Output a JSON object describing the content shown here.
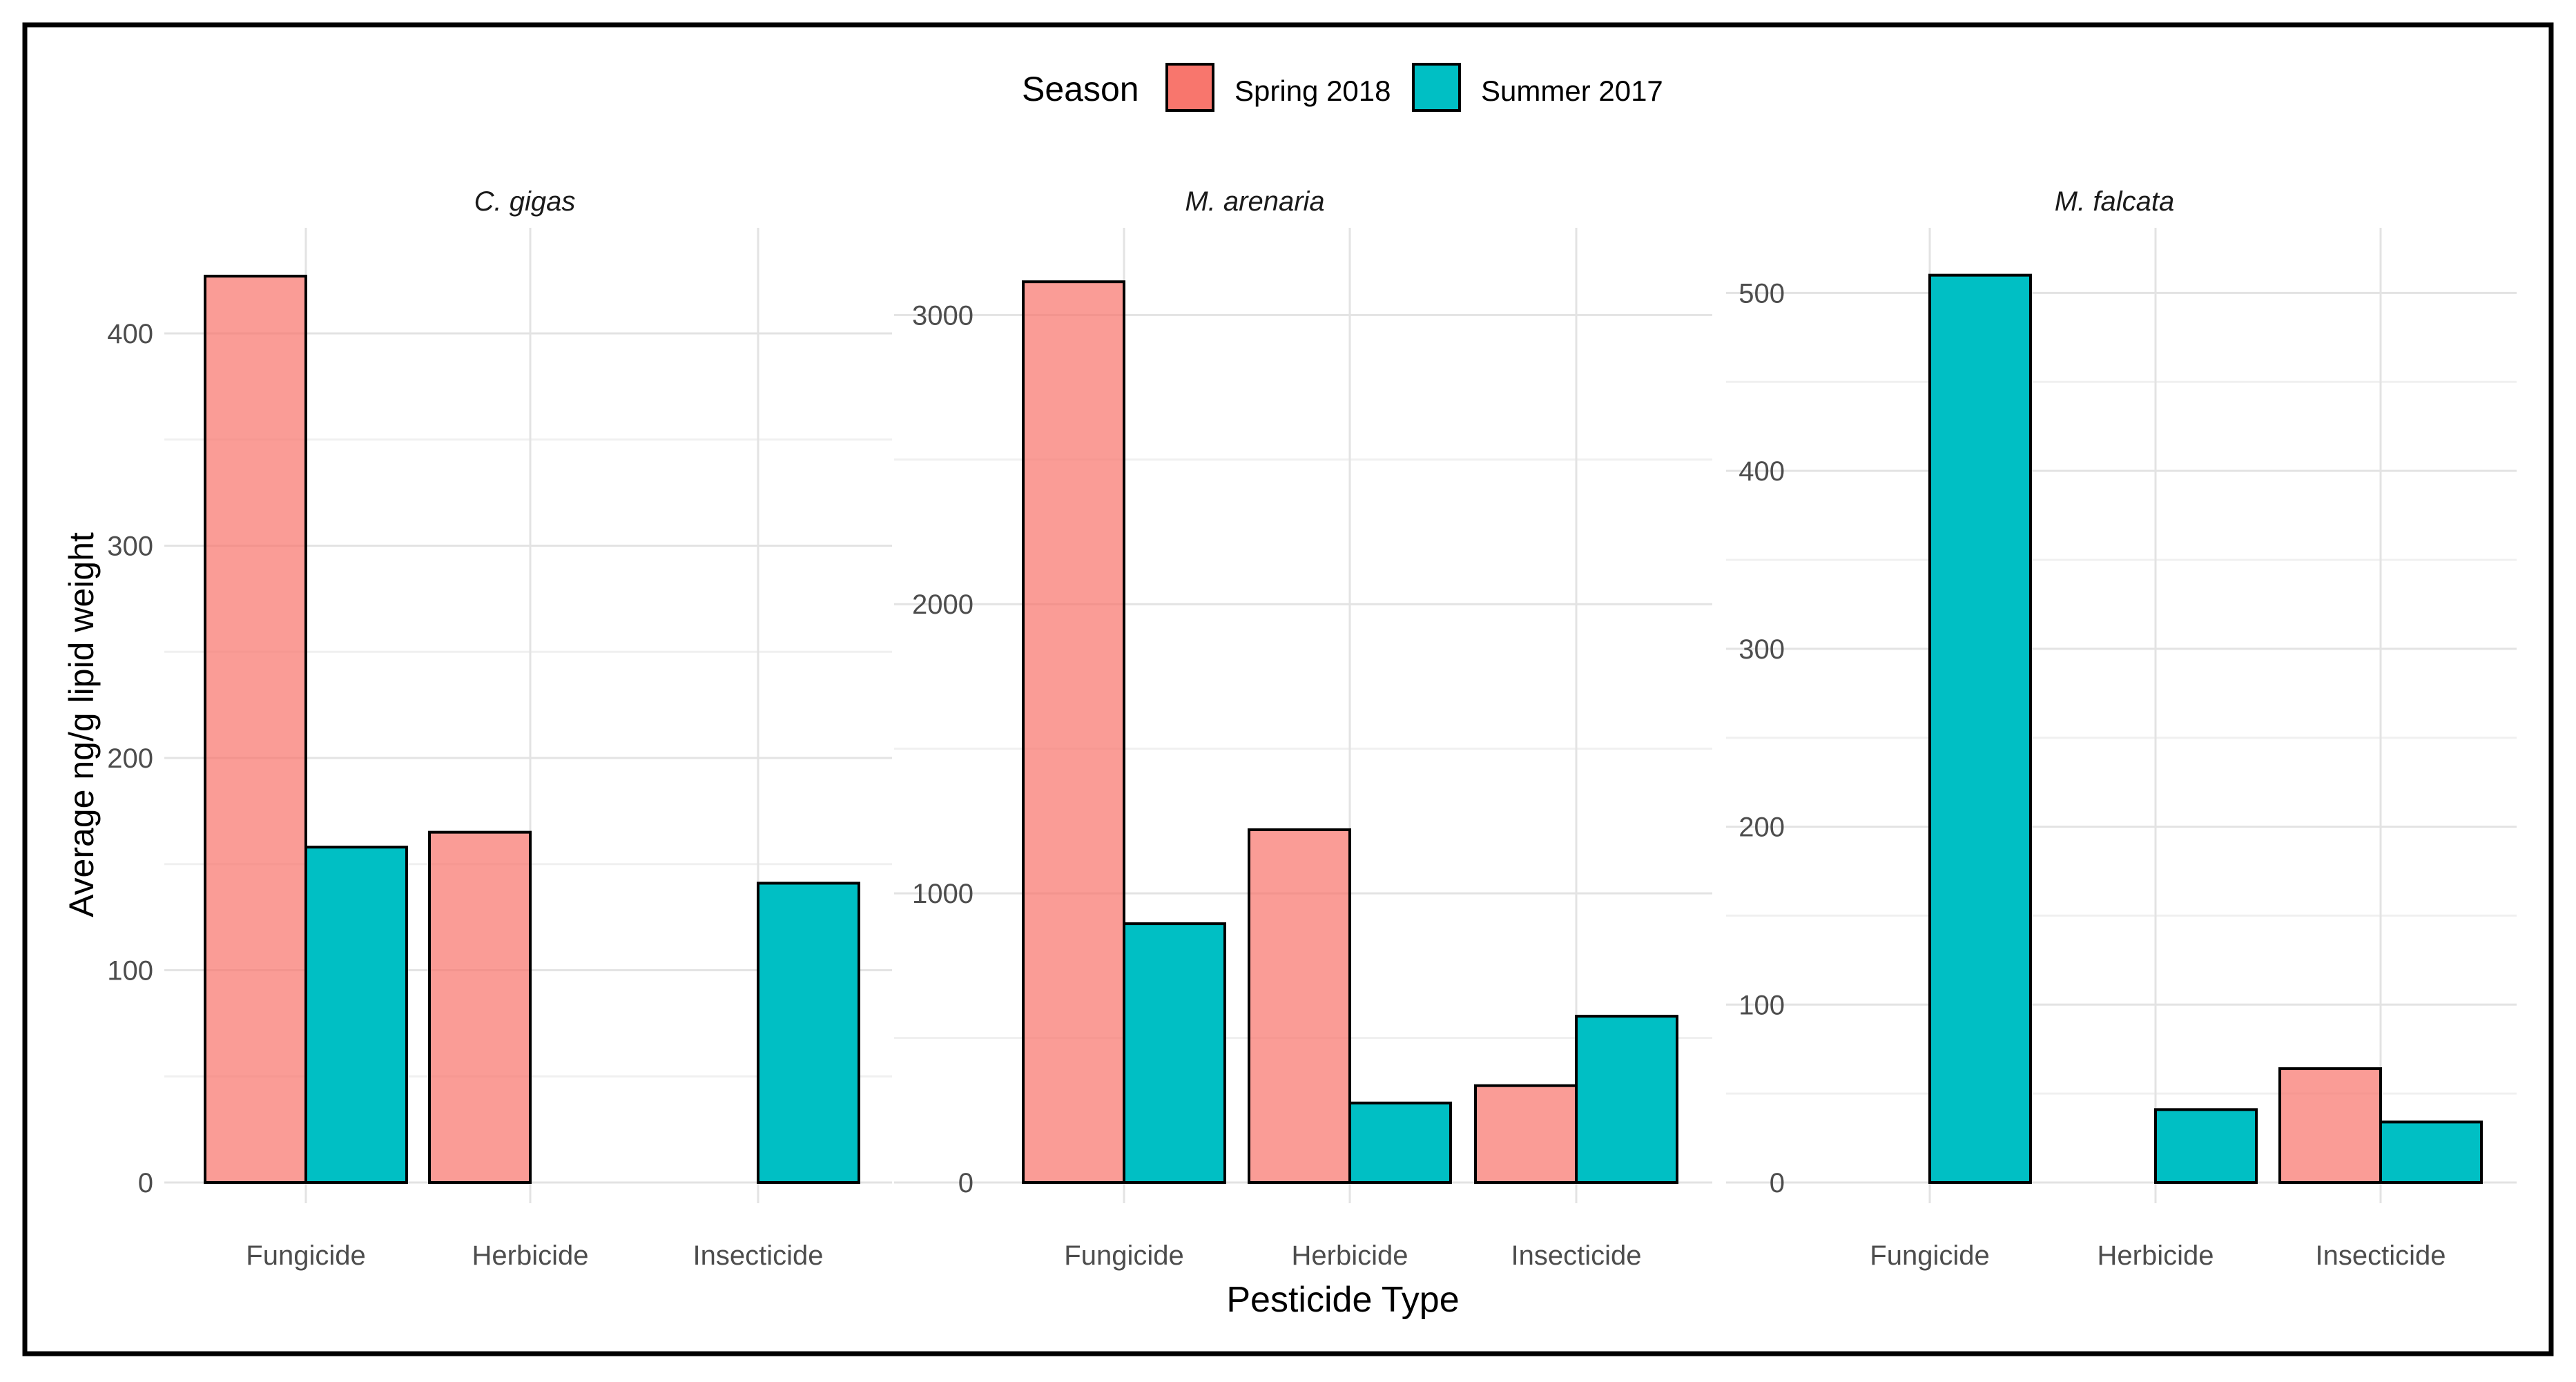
{
  "chart_data": {
    "type": "bar",
    "legend": {
      "title": "Season",
      "position": "top",
      "entries": [
        {
          "name": "Spring 2018",
          "color": "#F8766D"
        },
        {
          "name": "Summer 2017",
          "color": "#00BFC4"
        }
      ]
    },
    "xlabel": "Pesticide Type",
    "ylabel": "Average ng/g lipid weight",
    "categories": [
      "Fungicide",
      "Herbicide",
      "Insecticide"
    ],
    "panels": [
      {
        "title": "C. gigas",
        "ylim": [
          0,
          440
        ],
        "yticks": [
          0,
          100,
          200,
          300,
          400
        ],
        "series": [
          {
            "name": "Spring 2018",
            "values": [
              427,
              165,
              0
            ]
          },
          {
            "name": "Summer 2017",
            "values": [
              158,
              0,
              141
            ]
          }
        ]
      },
      {
        "title": "M. arenaria",
        "ylim": [
          0,
          3230
        ],
        "yticks": [
          0,
          1000,
          2000,
          3000
        ],
        "series": [
          {
            "name": "Spring 2018",
            "values": [
              3115,
              1220,
              335
            ]
          },
          {
            "name": "Summer 2017",
            "values": [
              895,
              275,
              575
            ]
          }
        ]
      },
      {
        "title": "M. falcata",
        "ylim": [
          0,
          525
        ],
        "yticks": [
          0,
          100,
          200,
          300,
          400,
          500
        ],
        "series": [
          {
            "name": "Spring 2018",
            "values": [
              0,
              0,
              64
            ]
          },
          {
            "name": "Summer 2017",
            "values": [
              510,
              41,
              34
            ]
          }
        ]
      }
    ]
  }
}
